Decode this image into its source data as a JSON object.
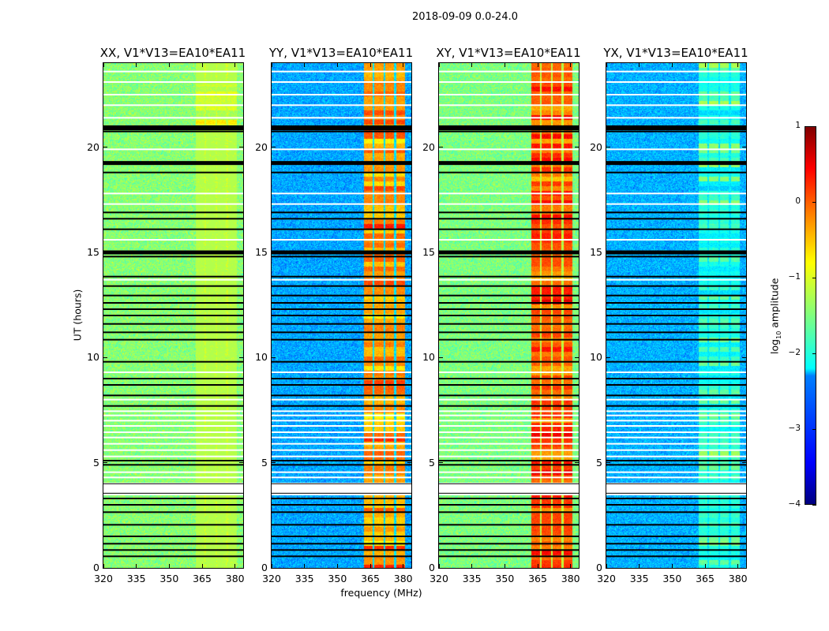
{
  "figure": {
    "suptitle": "2018-09-09 0.0-24.0",
    "xlabel": "frequency (MHz)",
    "ylabel": "UT (hours)"
  },
  "colorbar": {
    "label_prefix": "log",
    "label_sub": "10",
    "label_suffix": " amplitude",
    "range": [
      -4,
      1
    ],
    "ticks": [
      "1",
      "0",
      "−1",
      "−2",
      "−3",
      "−4"
    ],
    "tick_values": [
      1,
      0,
      -1,
      -2,
      -3,
      -4
    ],
    "colormap": "jet"
  },
  "chart_data": [
    {
      "type": "heatmap",
      "title": "XX, V1*V13=EA10*EA11",
      "xlim": [
        320,
        383.7
      ],
      "ylim": [
        0,
        24
      ],
      "xticks": [
        "320",
        "335",
        "350",
        "365",
        "380"
      ],
      "xtick_values": [
        320,
        335,
        350,
        365,
        380
      ],
      "yticks": [
        "0",
        "5",
        "10",
        "15",
        "20"
      ],
      "ytick_values": [
        0,
        5,
        10,
        15,
        20
      ],
      "base_level": -1.45,
      "rfi_band_mhz": [
        362,
        381
      ],
      "rfi_level": -1.15
    },
    {
      "type": "heatmap",
      "title": "YY, V1*V13=EA10*EA11",
      "xlim": [
        320,
        383.7
      ],
      "ylim": [
        0,
        24
      ],
      "xticks": [
        "320",
        "335",
        "350",
        "365",
        "380"
      ],
      "xtick_values": [
        320,
        335,
        350,
        365,
        380
      ],
      "yticks": [
        "0",
        "5",
        "10",
        "15",
        "20"
      ],
      "ytick_values": [
        0,
        5,
        10,
        15,
        20
      ],
      "base_level": -2.55,
      "rfi_band_mhz": [
        362,
        381
      ],
      "rfi_level": -0.35
    },
    {
      "type": "heatmap",
      "title": "XY, V1*V13=EA10*EA11",
      "xlim": [
        320,
        383.7
      ],
      "ylim": [
        0,
        24
      ],
      "xticks": [
        "320",
        "335",
        "350",
        "365",
        "380"
      ],
      "xtick_values": [
        320,
        335,
        350,
        365,
        380
      ],
      "yticks": [
        "0",
        "5",
        "10",
        "15",
        "20"
      ],
      "ytick_values": [
        0,
        5,
        10,
        15,
        20
      ],
      "base_level": -1.5,
      "rfi_band_mhz": [
        362,
        381
      ],
      "rfi_level": 0.0
    },
    {
      "type": "heatmap",
      "title": "YX, V1*V13=EA10*EA11",
      "xlim": [
        320,
        383.7
      ],
      "ylim": [
        0,
        24
      ],
      "xticks": [
        "320",
        "335",
        "350",
        "365",
        "380"
      ],
      "xtick_values": [
        320,
        335,
        350,
        365,
        380
      ],
      "yticks": [
        "0",
        "5",
        "10",
        "15",
        "20"
      ],
      "ytick_values": [
        0,
        5,
        10,
        15,
        20
      ],
      "base_level": -2.5,
      "rfi_band_mhz": [
        362,
        381
      ],
      "rfi_level": -1.9
    }
  ],
  "flags": {
    "zero_rows_hours": [
      0.55,
      0.85,
      1.15,
      1.5,
      2.05,
      2.65,
      3.0,
      3.3,
      4.9,
      5.1,
      7.7,
      8.2,
      8.7,
      9.0,
      9.8,
      10.85,
      11.2,
      11.6,
      12.0,
      12.3,
      12.6,
      12.95,
      13.4,
      13.85,
      14.8,
      15.0,
      16.1,
      16.6,
      16.9,
      18.8,
      19.25,
      20.75,
      21.0
    ],
    "thick_zero_rows_hours": [
      15.0,
      19.25,
      20.9
    ],
    "nan_rows_hours": [
      4.3,
      4.55,
      5.3,
      5.6,
      5.9,
      6.2,
      6.45,
      6.75,
      7.0,
      7.25,
      7.45,
      8.0,
      9.3,
      13.7,
      15.6,
      17.3,
      17.8,
      19.9,
      21.4,
      22.0,
      22.5,
      23.1,
      23.6
    ],
    "nan_span_hours": [
      3.45,
      4.05
    ]
  }
}
